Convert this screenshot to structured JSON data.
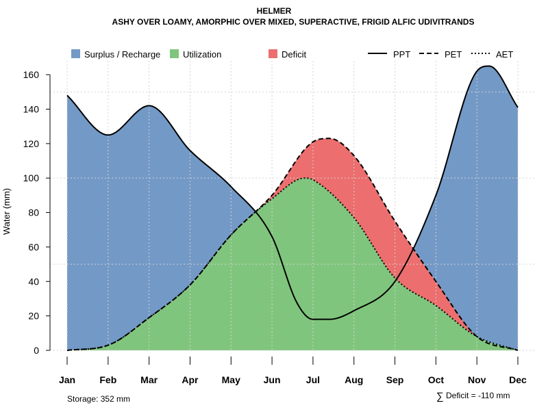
{
  "chart_data": {
    "type": "area",
    "title": "HELMER",
    "subtitle": "ASHY OVER LOAMY, AMORPHIC OVER MIXED, SUPERACTIVE, FRIGID ALFIC UDIVITRANDS",
    "xlabel": "",
    "ylabel": "Water (mm)",
    "ylim": [
      0,
      168
    ],
    "yticks": [
      0,
      20,
      40,
      60,
      80,
      100,
      120,
      140,
      160
    ],
    "categories": [
      "Jan",
      "Feb",
      "Mar",
      "Apr",
      "May",
      "Jun",
      "Jul",
      "Aug",
      "Sep",
      "Oct",
      "Nov",
      "Dec"
    ],
    "grid": true,
    "legend": [
      {
        "label": "Surplus / Recharge",
        "kind": "fill",
        "color": "#7399c6"
      },
      {
        "label": "Utilization",
        "kind": "fill",
        "color": "#80c57d"
      },
      {
        "label": "Deficit",
        "kind": "fill",
        "color": "#ec6e6e"
      },
      {
        "label": "PPT",
        "kind": "line",
        "dash": "solid"
      },
      {
        "label": "PET",
        "kind": "line",
        "dash": "dashed"
      },
      {
        "label": "AET",
        "kind": "line",
        "dash": "dotted"
      }
    ],
    "series": [
      {
        "name": "PPT",
        "x": [
          0,
          1,
          2,
          3,
          4,
          5,
          5.6,
          6,
          6.4,
          7,
          8,
          9,
          10,
          10.3,
          11
        ],
        "values": [
          148,
          125,
          142,
          116,
          95,
          66,
          28,
          18,
          18,
          23,
          40,
          90,
          162,
          165,
          141
        ]
      },
      {
        "name": "PET",
        "x": [
          0,
          1,
          2,
          3,
          4,
          5,
          6,
          6.4,
          7,
          8,
          9,
          10,
          11
        ],
        "values": [
          0,
          3,
          19,
          38,
          67,
          90,
          121,
          123,
          113,
          75,
          40,
          8,
          0
        ]
      },
      {
        "name": "AET",
        "x": [
          0,
          1,
          2,
          3,
          4,
          5,
          5.8,
          6,
          7,
          8,
          9,
          10,
          11
        ],
        "values": [
          0,
          3,
          19,
          38,
          67,
          88,
          100,
          99,
          77,
          42,
          26,
          8,
          0
        ]
      }
    ],
    "annotations": {
      "storage": "Storage: 352 mm",
      "deficit": "Deficit = -110 mm",
      "deficit_symbol": "∑"
    },
    "colors": {
      "surplus": "#7399c6",
      "utilization": "#80c57d",
      "deficit": "#ec6e6e",
      "line": "#000000",
      "grid": "#d3d3d3"
    }
  }
}
